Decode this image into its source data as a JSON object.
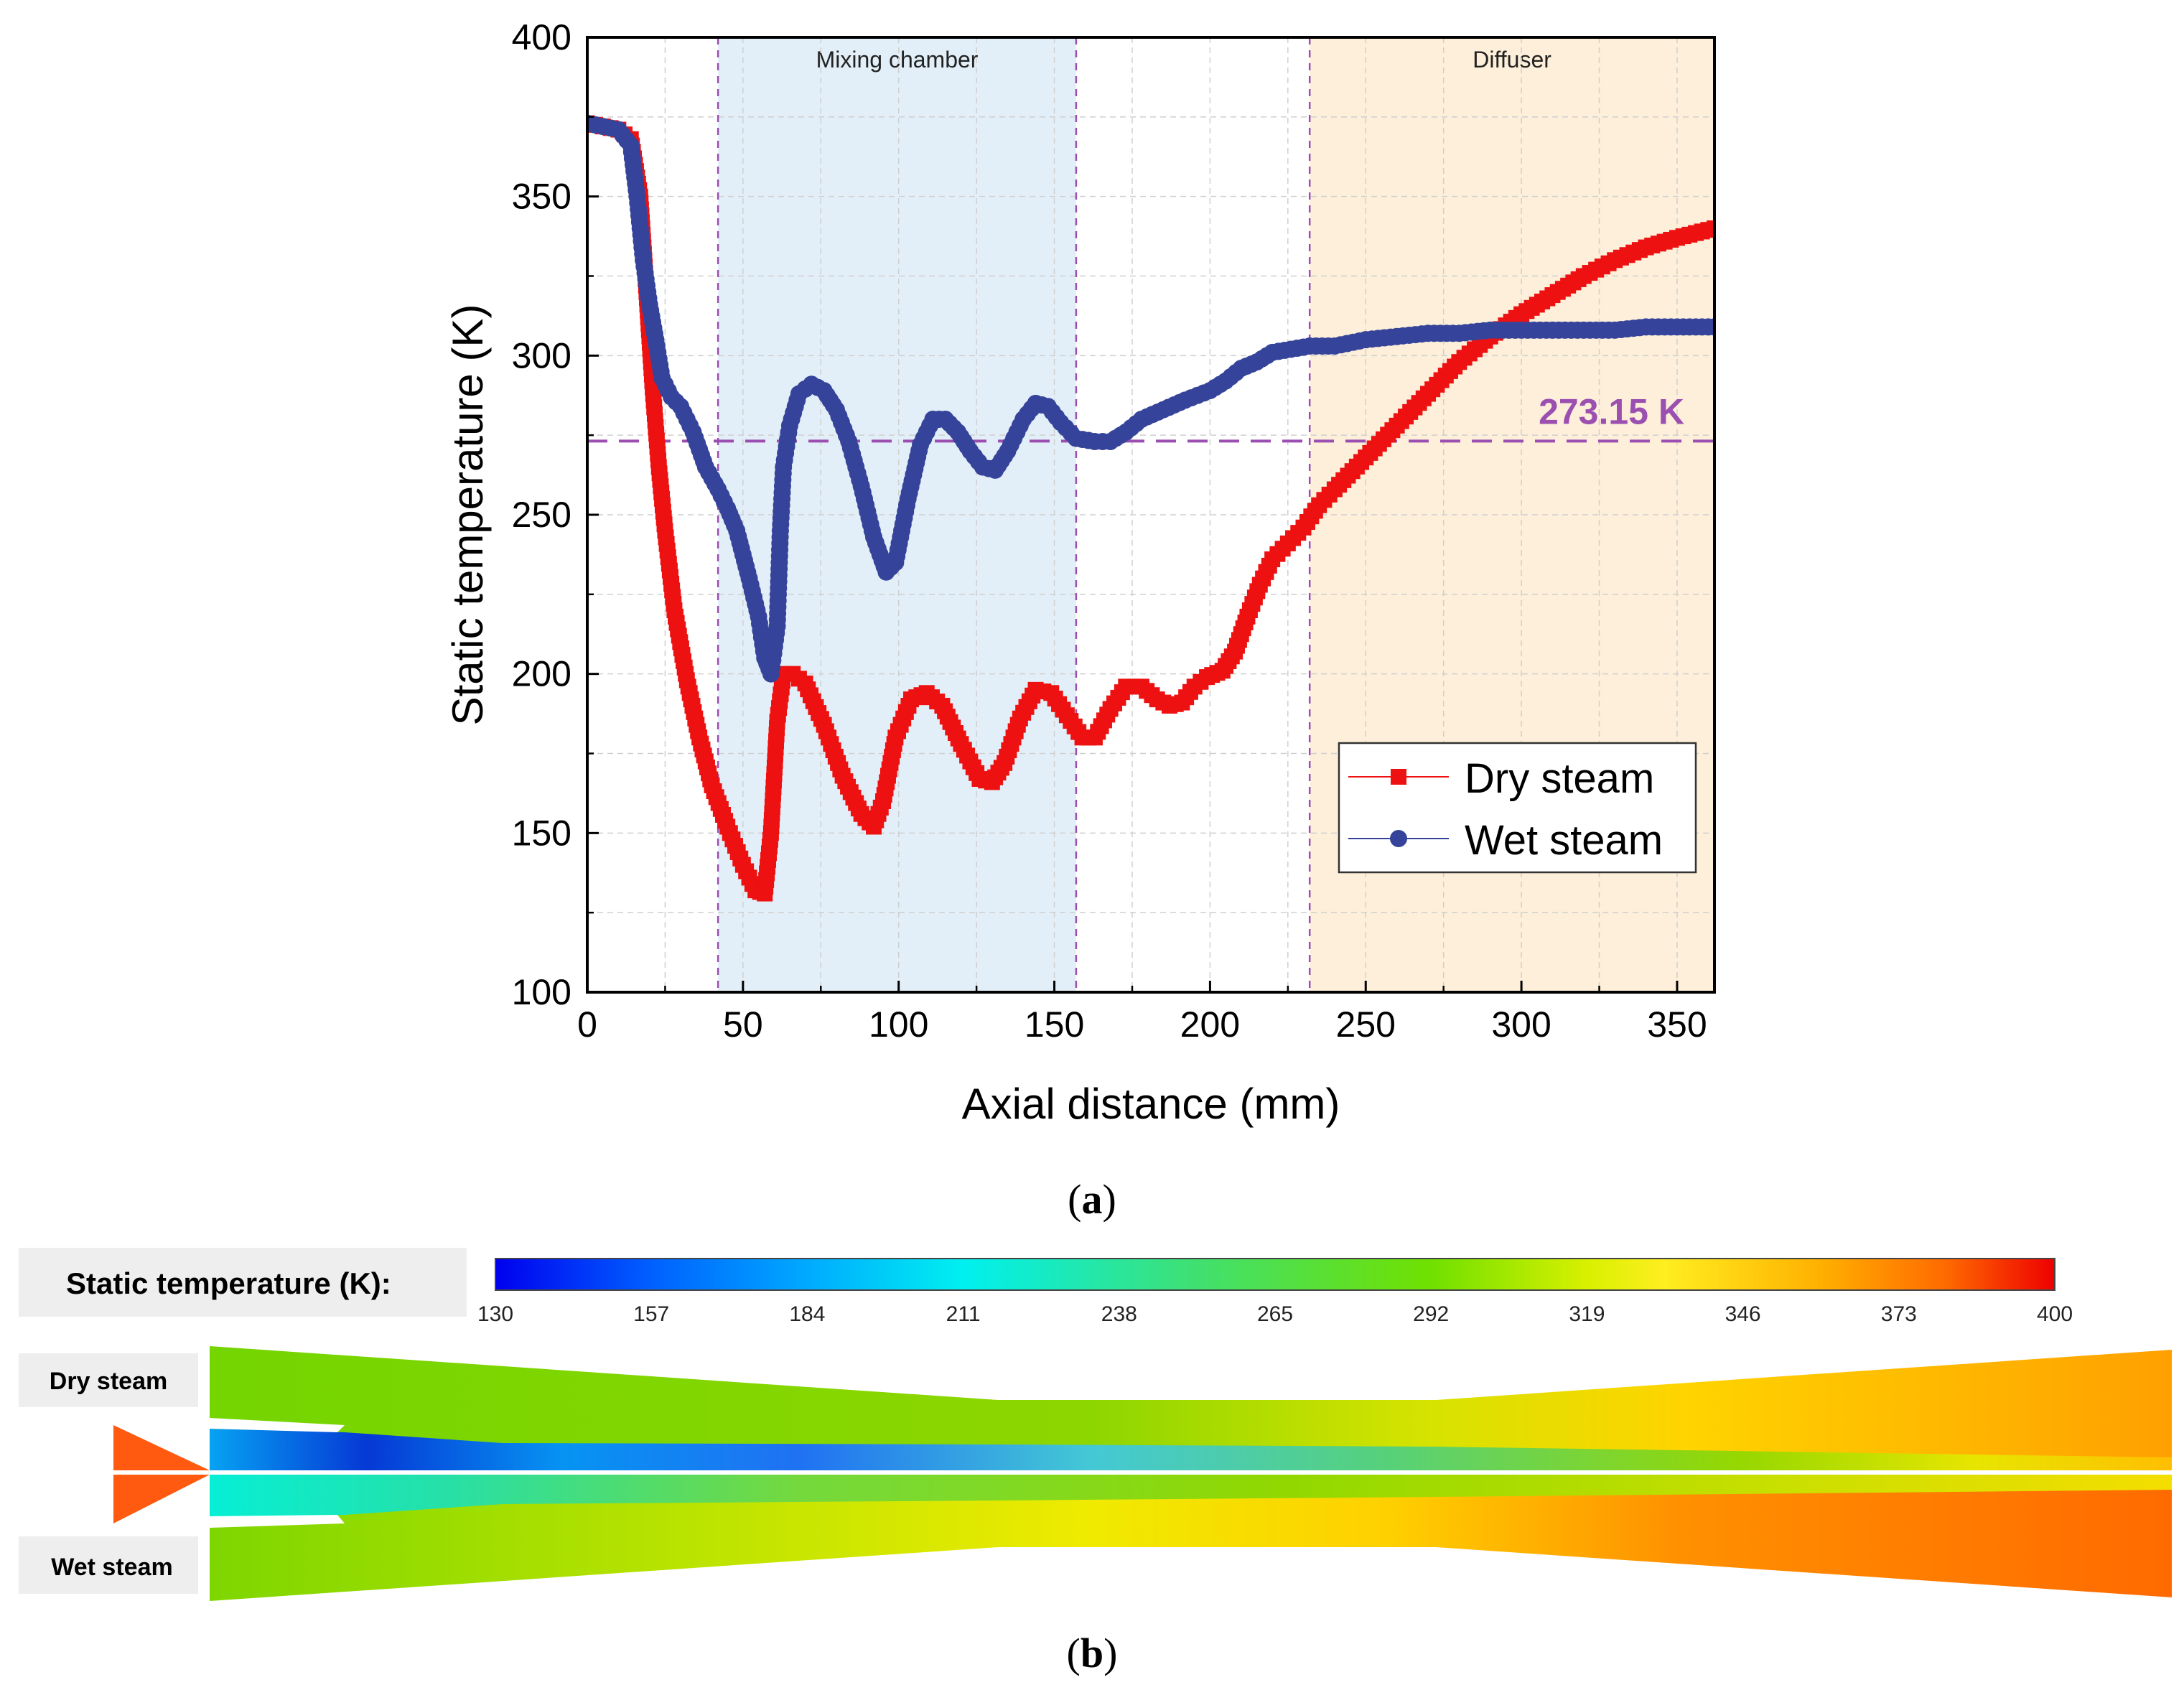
{
  "chart_data": {
    "type": "scatter",
    "xlabel": "Axial distance (mm)",
    "ylabel": "Static temperature (K)",
    "xlim": [
      0,
      362
    ],
    "ylim": [
      100,
      400
    ],
    "x_ticks": [
      0,
      50,
      100,
      150,
      200,
      250,
      300,
      350
    ],
    "y_ticks": [
      100,
      150,
      200,
      250,
      300,
      350,
      400
    ],
    "grid": true,
    "legend_position": "bottom-right",
    "regions": [
      {
        "label": "Mixing chamber",
        "x_start": 42,
        "x_end": 157,
        "color": "#e3eff8"
      },
      {
        "label": "Diffuser",
        "x_start": 232,
        "x_end": 362,
        "color": "#fdefd9"
      }
    ],
    "reference_line": {
      "label": "273.15 K",
      "y": 273.15,
      "color": "#9b4fb0"
    },
    "series": [
      {
        "name": "Dry steam",
        "color": "#ee1111",
        "marker": "square",
        "points": [
          [
            0,
            373
          ],
          [
            5,
            372
          ],
          [
            10,
            371
          ],
          [
            14,
            368
          ],
          [
            17,
            350
          ],
          [
            19,
            320
          ],
          [
            21,
            290
          ],
          [
            23,
            265
          ],
          [
            25,
            245
          ],
          [
            28,
            220
          ],
          [
            32,
            198
          ],
          [
            36,
            180
          ],
          [
            40,
            165
          ],
          [
            45,
            152
          ],
          [
            50,
            140
          ],
          [
            54,
            132
          ],
          [
            57,
            131
          ],
          [
            59,
            150
          ],
          [
            61,
            185
          ],
          [
            63,
            200
          ],
          [
            66,
            200
          ],
          [
            70,
            197
          ],
          [
            76,
            184
          ],
          [
            82,
            168
          ],
          [
            88,
            156
          ],
          [
            92,
            152
          ],
          [
            95,
            160
          ],
          [
            99,
            180
          ],
          [
            104,
            192
          ],
          [
            109,
            194
          ],
          [
            114,
            190
          ],
          [
            120,
            178
          ],
          [
            126,
            167
          ],
          [
            130,
            166
          ],
          [
            134,
            172
          ],
          [
            139,
            186
          ],
          [
            144,
            195
          ],
          [
            149,
            194
          ],
          [
            154,
            187
          ],
          [
            159,
            180
          ],
          [
            163,
            180
          ],
          [
            168,
            189
          ],
          [
            173,
            196
          ],
          [
            178,
            196
          ],
          [
            183,
            192
          ],
          [
            187,
            190
          ],
          [
            191,
            191
          ],
          [
            195,
            196
          ],
          [
            199,
            199
          ],
          [
            204,
            201
          ],
          [
            208,
            207
          ],
          [
            212,
            218
          ],
          [
            216,
            228
          ],
          [
            220,
            236
          ],
          [
            225,
            241
          ],
          [
            230,
            246
          ],
          [
            235,
            253
          ],
          [
            240,
            258
          ],
          [
            250,
            268
          ],
          [
            260,
            278
          ],
          [
            270,
            288
          ],
          [
            280,
            298
          ],
          [
            290,
            306
          ],
          [
            300,
            313
          ],
          [
            310,
            319
          ],
          [
            320,
            325
          ],
          [
            330,
            330
          ],
          [
            340,
            334
          ],
          [
            350,
            337
          ],
          [
            362,
            340
          ]
        ]
      },
      {
        "name": "Wet steam",
        "color": "#35449a",
        "marker": "circle",
        "points": [
          [
            0,
            373
          ],
          [
            5,
            372
          ],
          [
            10,
            371
          ],
          [
            14,
            366
          ],
          [
            16,
            350
          ],
          [
            18,
            330
          ],
          [
            20,
            316
          ],
          [
            22,
            305
          ],
          [
            24,
            293
          ],
          [
            27,
            287
          ],
          [
            30,
            284
          ],
          [
            34,
            276
          ],
          [
            38,
            265
          ],
          [
            42,
            258
          ],
          [
            45,
            252
          ],
          [
            48,
            245
          ],
          [
            52,
            230
          ],
          [
            55,
            218
          ],
          [
            57,
            205
          ],
          [
            59,
            200
          ],
          [
            61,
            215
          ],
          [
            62,
            245
          ],
          [
            63,
            265
          ],
          [
            65,
            278
          ],
          [
            68,
            288
          ],
          [
            72,
            291
          ],
          [
            76,
            289
          ],
          [
            80,
            283
          ],
          [
            84,
            273
          ],
          [
            88,
            259
          ],
          [
            92,
            243
          ],
          [
            96,
            232
          ],
          [
            99,
            235
          ],
          [
            103,
            255
          ],
          [
            107,
            272
          ],
          [
            111,
            280
          ],
          [
            115,
            280
          ],
          [
            119,
            276
          ],
          [
            123,
            270
          ],
          [
            127,
            265
          ],
          [
            131,
            264
          ],
          [
            135,
            270
          ],
          [
            140,
            280
          ],
          [
            144,
            285
          ],
          [
            148,
            284
          ],
          [
            152,
            279
          ],
          [
            157,
            274
          ],
          [
            163,
            273
          ],
          [
            168,
            273
          ],
          [
            173,
            276
          ],
          [
            178,
            280
          ],
          [
            185,
            283
          ],
          [
            192,
            286
          ],
          [
            200,
            289
          ],
          [
            205,
            292
          ],
          [
            210,
            296
          ],
          [
            215,
            298
          ],
          [
            220,
            301
          ],
          [
            226,
            302
          ],
          [
            232,
            303
          ],
          [
            240,
            303
          ],
          [
            250,
            305
          ],
          [
            260,
            306
          ],
          [
            270,
            307
          ],
          [
            280,
            307
          ],
          [
            290,
            308
          ],
          [
            300,
            308
          ],
          [
            310,
            308
          ],
          [
            320,
            308
          ],
          [
            330,
            308
          ],
          [
            340,
            309
          ],
          [
            350,
            309
          ],
          [
            362,
            309
          ]
        ]
      }
    ]
  },
  "captions": {
    "panel_a": "a",
    "panel_b": "b"
  },
  "contour": {
    "colorbar_title": "Static temperature (K):",
    "colorbar_ticks": [
      "130",
      "157",
      "184",
      "211",
      "238",
      "265",
      "292",
      "319",
      "346",
      "373",
      "400"
    ],
    "row_labels": {
      "dry": "Dry steam",
      "wet": "Wet steam"
    }
  }
}
